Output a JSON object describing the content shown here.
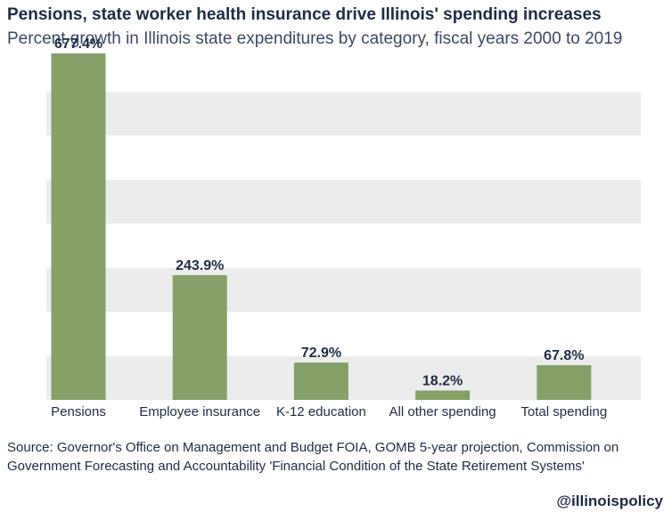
{
  "chart_data": {
    "type": "bar",
    "title": "Pensions, state worker health insurance drive Illinois' spending increases",
    "subtitle": "Percent growth in Illinois state expenditures by category, fiscal years 2000 to 2019",
    "categories": [
      "Pensions",
      "Employee insurance",
      "K-12 education",
      "All other spending",
      "Total spending"
    ],
    "values": [
      677.4,
      243.9,
      72.9,
      18.2,
      67.8
    ],
    "data_labels": [
      "677.4%",
      "243.9%",
      "72.9%",
      "18.2%",
      "67.8%"
    ],
    "ylim": [
      0,
      700
    ],
    "grid": "alternating horizontal bands",
    "colors": {
      "bar": "#84a067",
      "band": "#ececec",
      "text": "#1d2b45"
    }
  },
  "source": "Source: Governor's Office on Management and Budget FOIA, GOMB 5-year projection, Commission on Government Forecasting and Accountability 'Financial Condition of the State Retirement Systems'",
  "handle": "@illinoispolicy"
}
